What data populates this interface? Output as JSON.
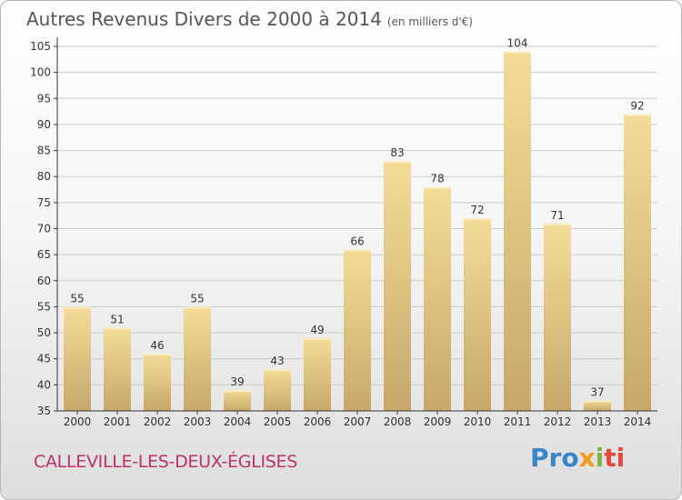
{
  "title": "Autres Revenus Divers de 2000 à 2014",
  "unit_label": "(en milliers d'€)",
  "town": "CALLEVILLE-LES-DEUX-ÉGLISES",
  "logo": {
    "p1": "Pro",
    "p2": "x",
    "p3": "i",
    "p4": "ti"
  },
  "colors": {
    "bar_light": "#f4dc98",
    "bar_dark": "#c7a869",
    "axis": "#333333",
    "grid": "#cccccc",
    "town": "#c0306b"
  },
  "chart_data": {
    "type": "bar",
    "title": "Autres Revenus Divers de 2000 à 2014",
    "xlabel": "",
    "ylabel": "",
    "categories": [
      "2000",
      "2001",
      "2002",
      "2003",
      "2004",
      "2005",
      "2006",
      "2007",
      "2008",
      "2009",
      "2010",
      "2011",
      "2012",
      "2013",
      "2014"
    ],
    "values": [
      55,
      51,
      46,
      55,
      39,
      43,
      49,
      66,
      83,
      78,
      72,
      104,
      71,
      37,
      92
    ],
    "ylim": [
      35,
      105
    ],
    "yticks": [
      35,
      40,
      45,
      50,
      55,
      60,
      65,
      70,
      75,
      80,
      85,
      90,
      95,
      100,
      105
    ],
    "grid": true,
    "data_labels": true
  }
}
